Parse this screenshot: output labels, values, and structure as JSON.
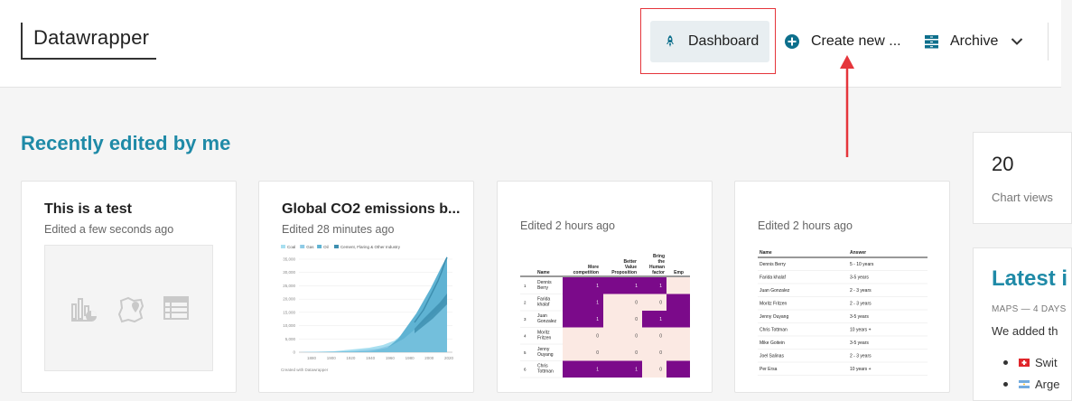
{
  "header": {
    "logo": "Datawrapper",
    "nav": {
      "dashboard": "Dashboard",
      "create": "Create new ...",
      "archive": "Archive"
    }
  },
  "section_title": "Recently edited by me",
  "cards": [
    {
      "title": "This is a test",
      "meta": "Edited a few seconds ago"
    },
    {
      "title": "Global CO2 emissions b...",
      "meta": "Edited 28 minutes ago"
    },
    {
      "title": "",
      "meta": "Edited 2 hours ago"
    },
    {
      "title": "",
      "meta": "Edited 2 hours ago"
    }
  ],
  "co2_chart": {
    "legend": [
      "Coal",
      "Gas",
      "Oil",
      "Cement, Flaring & Other Industry"
    ],
    "yticks": [
      "35,000",
      "30,000",
      "25,000",
      "20,000",
      "15,000",
      "10,000",
      "5,000",
      "0"
    ],
    "xticks": [
      "1880",
      "1900",
      "1920",
      "1940",
      "1960",
      "1980",
      "2000",
      "2020"
    ],
    "credit": "Created with Datawrapper",
    "colors": {
      "coal": "#8ecbe6",
      "gas": "#a8dff0",
      "oil": "#5fb3d3",
      "cement": "#3e8fb0"
    }
  },
  "heat_table": {
    "headers": [
      "Name",
      "More competition",
      "Better Value Proposition",
      "Bring the Human factor",
      "Emp"
    ],
    "rows": [
      {
        "num": "1",
        "name": "Dennis Berry",
        "vals": [
          "1",
          "1",
          "1"
        ]
      },
      {
        "num": "2",
        "name": "Farida khalaf",
        "vals": [
          "1",
          "0",
          "0"
        ]
      },
      {
        "num": "3",
        "name": "Juan Gonzalez",
        "vals": [
          "1",
          "0",
          "1"
        ]
      },
      {
        "num": "4",
        "name": "Moritz Fritzen",
        "vals": [
          "0",
          "0",
          "0"
        ]
      },
      {
        "num": "5",
        "name": "Jenny Ouyang",
        "vals": [
          "0",
          "0",
          "0"
        ]
      },
      {
        "num": "6",
        "name": "Chris Tottman",
        "vals": [
          "1",
          "1",
          "0"
        ]
      }
    ],
    "colors": {
      "high": "#7b0a8a",
      "low": "#fbe9e3"
    }
  },
  "answer_table": {
    "headers": [
      "Name",
      "Answer"
    ],
    "rows": [
      [
        "Dennis Berry",
        "5 - 10 years"
      ],
      [
        "Farida khalaf",
        "3-5 years"
      ],
      [
        "Juan Gonzalez",
        "2 - 3 years"
      ],
      [
        "Moritz Fritzen",
        "2 - 3 years"
      ],
      [
        "Jenny Ouyang",
        "3-5 years"
      ],
      [
        "Chris Tottman",
        "10 years +"
      ],
      [
        "Mike Goitein",
        "3-5 years"
      ],
      [
        "Joel Salinas",
        "2 - 3 years"
      ],
      [
        "Per Ersa",
        "10 years +"
      ]
    ]
  },
  "stats": {
    "value": "20",
    "label": "Chart views"
  },
  "latest": {
    "title": "Latest i",
    "meta": "MAPS — 4 DAYS",
    "text": "We added th",
    "items": [
      "Swit",
      "Arge"
    ]
  },
  "accent": "#1f8aa7"
}
